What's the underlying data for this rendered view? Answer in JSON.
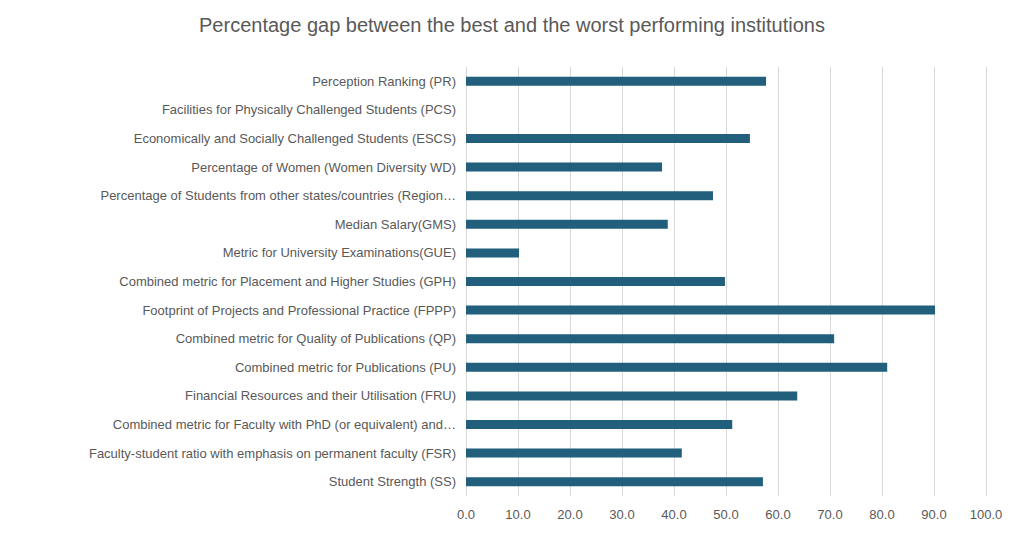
{
  "chart_data": {
    "type": "bar",
    "title": "Percentage gap between the best and the worst performing institutions",
    "orientation": "horizontal",
    "categories": [
      "Perception Ranking (PR)",
      "Facilities for Physically Challenged Students (PCS)",
      "Economically and Socially Challenged Students (ESCS)",
      "Percentage of Women (Women Diversity WD)",
      "Percentage of Students from other states/countries (Region…",
      "Median Salary(GMS)",
      "Metric for University Examinations(GUE)",
      "Combined metric for Placement and Higher Studies (GPH)",
      "Footprint of Projects and Professional Practice (FPPP)",
      "Combined metric for Quality of Publications (QP)",
      "Combined metric for Publications (PU)",
      "Financial Resources and their Utilisation (FRU)",
      "Combined metric for Faculty with PhD (or equivalent) and…",
      "Faculty-student ratio with emphasis on permanent faculty (FSR)",
      "Student Strength (SS)"
    ],
    "values": [
      57.7,
      0,
      54.6,
      37.7,
      47.5,
      38.8,
      10.2,
      49.8,
      90.2,
      70.8,
      81.0,
      63.7,
      51.2,
      41.5,
      57.1
    ],
    "color": "#215f7d",
    "xlim": [
      0,
      100
    ],
    "xticks": [
      {
        "value": 0,
        "label": "0.0"
      },
      {
        "value": 10,
        "label": "10.0"
      },
      {
        "value": 20,
        "label": "20.0"
      },
      {
        "value": 30,
        "label": "30.0"
      },
      {
        "value": 40,
        "label": "40.0"
      },
      {
        "value": 50,
        "label": "50.0"
      },
      {
        "value": 60,
        "label": "60.0"
      },
      {
        "value": 70,
        "label": "70.0"
      },
      {
        "value": 80,
        "label": "80.0"
      },
      {
        "value": 90,
        "label": "90.0"
      },
      {
        "value": 100,
        "label": "100.0"
      }
    ],
    "grid": true
  }
}
